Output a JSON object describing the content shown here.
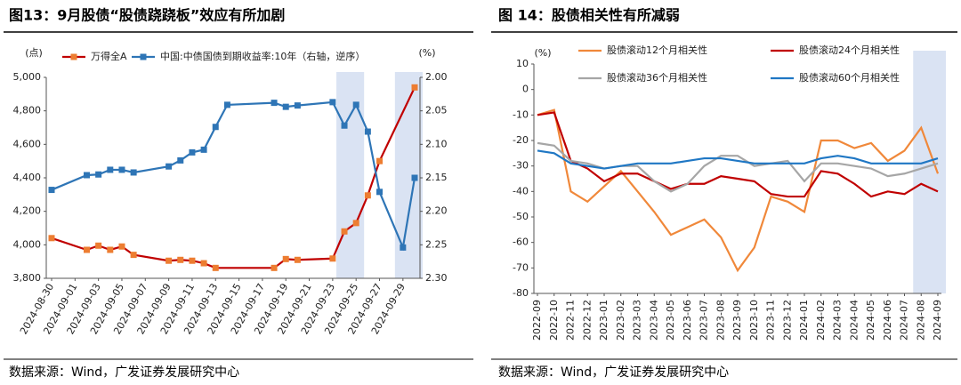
{
  "chart_data": [
    {
      "type": "line",
      "title": "图13：9月股债“股债跷跷板”效应有所加剧",
      "ylabel": "(点)",
      "y2label": "(%)",
      "xlim": [
        "2024-08-30",
        "2024-09-30"
      ],
      "xticks": [
        "2024-08-30",
        "2024-09-01",
        "2024-09-03",
        "2024-09-05",
        "2024-09-07",
        "2024-09-09",
        "2024-09-11",
        "2024-09-13",
        "2024-09-15",
        "2024-09-17",
        "2024-09-19",
        "2024-09-21",
        "2024-09-23",
        "2024-09-25",
        "2024-09-27",
        "2024-09-29"
      ],
      "ylim": [
        3800,
        5000
      ],
      "yticks": [
        {
          "value": 3800,
          "label": "3,800"
        },
        {
          "value": 4000,
          "label": "4,000"
        },
        {
          "value": 4200,
          "label": "4,200"
        },
        {
          "value": 4400,
          "label": "4,400"
        },
        {
          "value": 4600,
          "label": "4,600"
        },
        {
          "value": 4800,
          "label": "4,800"
        },
        {
          "value": 5000,
          "label": "5,000"
        }
      ],
      "y2lim": [
        2.0,
        2.3
      ],
      "y2_inverted": true,
      "y2ticks": [
        {
          "value": 2.0,
          "label": "2.00"
        },
        2.05,
        {
          "value": 2.1,
          "label": "2.10"
        },
        2.15,
        {
          "value": 2.2,
          "label": "2.20"
        },
        2.25,
        {
          "value": 2.3,
          "label": "2.30"
        }
      ],
      "highlights": [
        [
          "2024-09-24",
          "2024-09-25"
        ],
        [
          "2024-09-29",
          "2024-09-30"
        ]
      ],
      "series": [
        {
          "name": "万得全A",
          "color": "#c00000",
          "marker_color": "#ed7d31",
          "x": [
            "2024-08-30",
            "2024-09-02",
            "2024-09-03",
            "2024-09-04",
            "2024-09-05",
            "2024-09-06",
            "2024-09-09",
            "2024-09-10",
            "2024-09-11",
            "2024-09-12",
            "2024-09-13",
            "2024-09-18",
            "2024-09-19",
            "2024-09-20",
            "2024-09-23",
            "2024-09-24",
            "2024-09-25",
            "2024-09-26",
            "2024-09-27",
            "2024-09-30"
          ],
          "values": [
            4040,
            3970,
            3995,
            3970,
            3990,
            3940,
            3905,
            3910,
            3905,
            3890,
            3862,
            3862,
            3915,
            3910,
            3918,
            4080,
            4130,
            4295,
            4500,
            4940
          ]
        },
        {
          "name": "中国:中债国债到期收益率:10年（右轴，逆序）",
          "color": "#2e75b6",
          "marker_color": "#2e75b6",
          "axis": "y2",
          "x": [
            "2024-08-30",
            "2024-09-02",
            "2024-09-03",
            "2024-09-04",
            "2024-09-05",
            "2024-09-06",
            "2024-09-09",
            "2024-09-10",
            "2024-09-11",
            "2024-09-12",
            "2024-09-13",
            "2024-09-14",
            "2024-09-18",
            "2024-09-19",
            "2024-09-20",
            "2024-09-23",
            "2024-09-24",
            "2024-09-25",
            "2024-09-26",
            "2024-09-27",
            "2024-09-29",
            "2024-09-30"
          ],
          "values": [
            2.168,
            2.146,
            2.145,
            2.138,
            2.138,
            2.142,
            2.133,
            2.124,
            2.112,
            2.108,
            2.074,
            2.041,
            2.038,
            2.044,
            2.042,
            2.037,
            2.072,
            2.041,
            2.081,
            2.171,
            2.254,
            2.15
          ]
        }
      ],
      "source": "数据来源：Wind，广发证券发展研究中心"
    },
    {
      "type": "line",
      "title": "图 14：股债相关性有所减弱",
      "ylabel": "(%)",
      "categories": [
        "2022-09",
        "2022-10",
        "2022-11",
        "2022-12",
        "2023-01",
        "2023-02",
        "2023-03",
        "2023-04",
        "2023-05",
        "2023-06",
        "2023-07",
        "2023-08",
        "2023-09",
        "2023-10",
        "2023-11",
        "2023-12",
        "2024-01",
        "2024-02",
        "2024-03",
        "2024-04",
        "2024-05",
        "2024-06",
        "2024-07",
        "2024-08",
        "2024-09"
      ],
      "ylim": [
        -80,
        10
      ],
      "yticks": [
        -80,
        -70,
        -60,
        -50,
        -40,
        -30,
        -20,
        -10,
        0,
        10
      ],
      "highlights": [
        [
          "2024-08",
          "2024-09"
        ]
      ],
      "series": [
        {
          "name": "股债滚动12个月相关性",
          "color": "#f0883a",
          "values": [
            -10,
            -8,
            -40,
            -44,
            -38,
            -32,
            -40,
            -48,
            -57,
            -54,
            -51,
            -58,
            -71,
            -62,
            -42,
            -44,
            -48,
            -20,
            -20,
            -23,
            -21,
            -28,
            -24,
            -15,
            -33
          ]
        },
        {
          "name": "股债滚动24个月相关性",
          "color": "#c00000",
          "values": [
            -10,
            -9,
            -28,
            -31,
            -36,
            -33,
            -33,
            -36,
            -39,
            -37,
            -37,
            -34,
            -35,
            -36,
            -41,
            -42,
            -42,
            -32,
            -33,
            -37,
            -42,
            -40,
            -41,
            -37,
            -40
          ]
        },
        {
          "name": "股债滚动36个月相关性",
          "color": "#a6a6a6",
          "values": [
            -21,
            -22,
            -28,
            -29,
            -31,
            -30,
            -30,
            -36,
            -40,
            -37,
            -30,
            -26,
            -26,
            -30,
            -29,
            -28,
            -36,
            -29,
            -29,
            -30,
            -31,
            -34,
            -33,
            -31,
            -29
          ]
        },
        {
          "name": "股债滚动60个月相关性",
          "color": "#1f77c4",
          "values": [
            -24,
            -25,
            -29,
            -30,
            -31,
            -30,
            -29,
            -29,
            -29,
            -28,
            -27,
            -27,
            -28,
            -29,
            -29,
            -29,
            -29,
            -27,
            -26,
            -27,
            -29,
            -29,
            -29,
            -29,
            -27
          ]
        }
      ],
      "source": "数据来源：Wind，广发证券发展研究中心"
    }
  ]
}
